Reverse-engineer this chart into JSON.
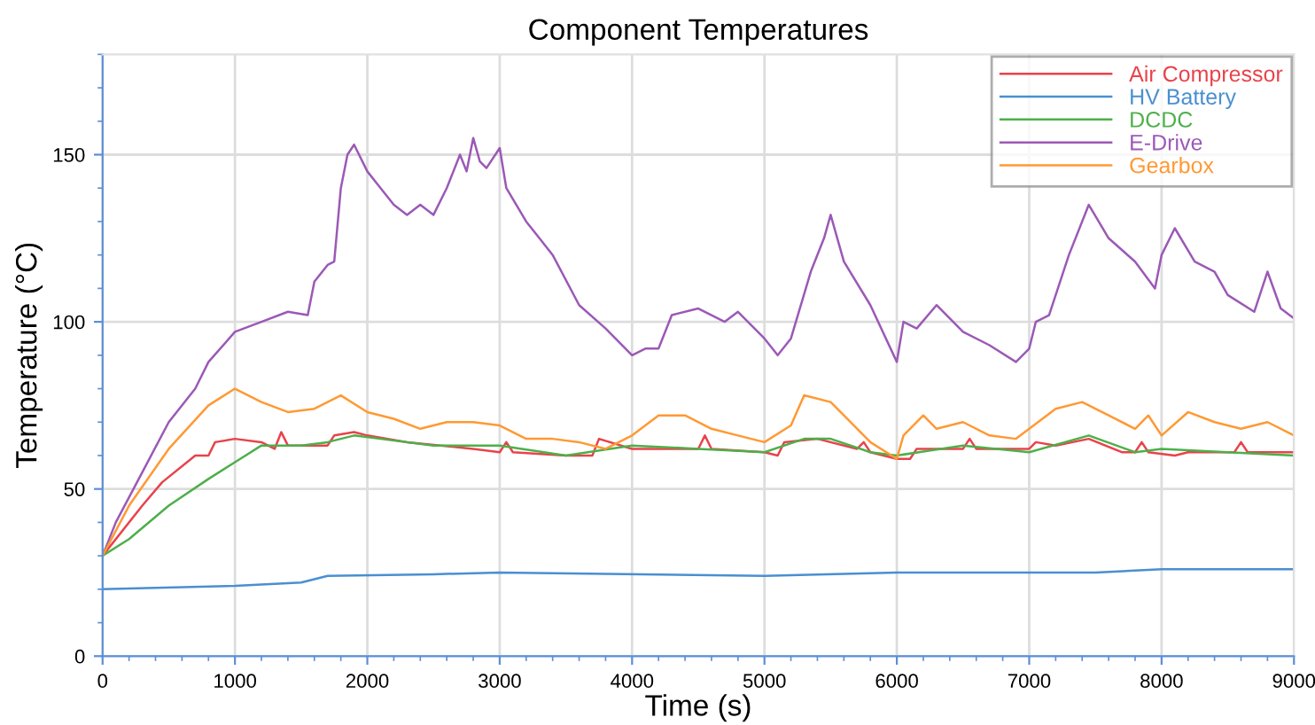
{
  "chart_data": {
    "type": "line",
    "title": "Component Temperatures",
    "xlabel": "Time (s)",
    "ylabel": "Temperature (°C)",
    "xlim": [
      0,
      9000
    ],
    "xticks": [
      0,
      1000,
      2000,
      3000,
      4000,
      5000,
      6000,
      7000,
      8000,
      9000
    ],
    "ylim": [
      0,
      180
    ],
    "yticks": [
      0,
      50,
      100,
      150
    ],
    "grid": true,
    "legend": "top right",
    "marker": "none",
    "line_style": "solid",
    "series": [
      {
        "name": "Air Compressor",
        "color": "#e8434b",
        "x": [
          0,
          300,
          450,
          700,
          800,
          850,
          1000,
          1200,
          1300,
          1350,
          1400,
          1700,
          1750,
          1900,
          2000,
          2300,
          2800,
          3000,
          3050,
          3100,
          3500,
          3700,
          3750,
          4000,
          4500,
          4550,
          4600,
          5000,
          5100,
          5150,
          5400,
          5700,
          5750,
          5800,
          6000,
          6100,
          6150,
          6500,
          6550,
          6600,
          7000,
          7050,
          7200,
          7450,
          7700,
          7800,
          7850,
          7900,
          8100,
          8200,
          8550,
          8600,
          8650,
          9000
        ],
        "values": [
          30,
          45,
          52,
          60,
          60,
          64,
          65,
          64,
          62,
          67,
          63,
          63,
          66,
          67,
          66,
          64,
          62,
          61,
          64,
          61,
          60,
          60,
          65,
          62,
          62,
          66,
          62,
          61,
          60,
          64,
          65,
          62,
          64,
          61,
          59,
          59,
          62,
          62,
          65,
          62,
          62,
          64,
          63,
          65,
          61,
          61,
          64,
          61,
          60,
          61,
          61,
          64,
          61,
          61
        ]
      },
      {
        "name": "HV Battery",
        "color": "#4a8fd1",
        "x": [
          0,
          1000,
          1500,
          1700,
          2500,
          3000,
          5000,
          6000,
          7000,
          7500,
          8000,
          9000
        ],
        "values": [
          20,
          21,
          22,
          24,
          24.5,
          25,
          24,
          25,
          25,
          25,
          26,
          26
        ]
      },
      {
        "name": "DCDC",
        "color": "#4daf4a",
        "x": [
          0,
          200,
          500,
          800,
          1000,
          1200,
          1500,
          1700,
          1900,
          2100,
          2500,
          3000,
          3500,
          4000,
          4500,
          5000,
          5300,
          5500,
          5800,
          6000,
          6500,
          7000,
          7450,
          7800,
          8000,
          8500,
          9000
        ],
        "values": [
          30,
          35,
          45,
          53,
          58,
          63,
          63,
          64,
          66,
          65,
          63,
          63,
          60,
          63,
          62,
          61,
          65,
          65,
          61,
          60,
          63,
          61,
          66,
          61,
          62,
          61,
          60
        ]
      },
      {
        "name": "E-Drive",
        "color": "#9b59b6",
        "x": [
          0,
          100,
          300,
          500,
          700,
          800,
          1000,
          1200,
          1400,
          1550,
          1600,
          1700,
          1750,
          1800,
          1850,
          1900,
          2000,
          2100,
          2200,
          2300,
          2400,
          2500,
          2600,
          2700,
          2750,
          2800,
          2850,
          2900,
          3000,
          3050,
          3200,
          3300,
          3400,
          3600,
          3800,
          4000,
          4100,
          4200,
          4300,
          4500,
          4700,
          4800,
          5000,
          5100,
          5200,
          5350,
          5450,
          5500,
          5600,
          5800,
          6000,
          6050,
          6150,
          6300,
          6500,
          6700,
          6900,
          7000,
          7050,
          7150,
          7300,
          7450,
          7600,
          7800,
          7950,
          8000,
          8100,
          8250,
          8400,
          8500,
          8700,
          8800,
          8900,
          9000
        ],
        "values": [
          30,
          40,
          55,
          70,
          80,
          88,
          97,
          100,
          103,
          102,
          112,
          117,
          118,
          140,
          150,
          153,
          145,
          140,
          135,
          132,
          135,
          132,
          140,
          150,
          145,
          155,
          148,
          146,
          152,
          140,
          130,
          125,
          120,
          105,
          98,
          90,
          92,
          92,
          102,
          104,
          100,
          103,
          95,
          90,
          95,
          115,
          125,
          132,
          118,
          105,
          88,
          100,
          98,
          105,
          97,
          93,
          88,
          92,
          100,
          102,
          120,
          135,
          125,
          118,
          110,
          120,
          128,
          118,
          115,
          108,
          103,
          115,
          104,
          101
        ]
      },
      {
        "name": "Gearbox",
        "color": "#ff9933",
        "x": [
          0,
          200,
          500,
          800,
          1000,
          1200,
          1400,
          1600,
          1800,
          2000,
          2200,
          2400,
          2600,
          2800,
          3000,
          3200,
          3400,
          3600,
          3800,
          4000,
          4200,
          4400,
          4600,
          4800,
          5000,
          5200,
          5300,
          5500,
          5600,
          5800,
          6000,
          6050,
          6200,
          6300,
          6500,
          6700,
          6900,
          7000,
          7200,
          7400,
          7600,
          7800,
          7900,
          8000,
          8200,
          8400,
          8600,
          8800,
          9000
        ],
        "values": [
          30,
          45,
          62,
          75,
          80,
          76,
          73,
          74,
          78,
          73,
          71,
          68,
          70,
          70,
          69,
          65,
          65,
          64,
          62,
          66,
          72,
          72,
          68,
          66,
          64,
          69,
          78,
          76,
          72,
          64,
          59,
          66,
          72,
          68,
          70,
          66,
          65,
          68,
          74,
          76,
          72,
          68,
          72,
          66,
          73,
          70,
          68,
          70,
          66
        ]
      }
    ]
  }
}
